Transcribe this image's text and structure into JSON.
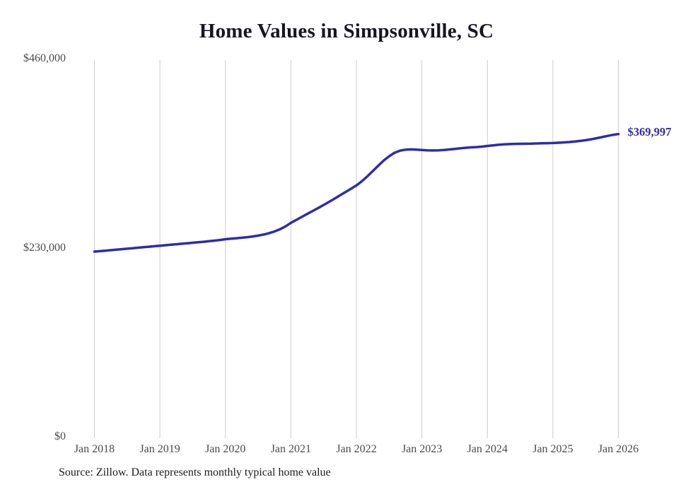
{
  "title": "Home Values in Simpsonville, SC",
  "source_note": "Source: Zillow. Data represents monthly typical home value",
  "chart_data": {
    "type": "line",
    "title": "Home Values in Simpsonville, SC",
    "series_name": "Monthly typical home value",
    "frequency": "monthly",
    "x_start": "Jan 2018",
    "x_end": "Jan 2026",
    "x_tick_labels": [
      "Jan 2018",
      "Jan 2019",
      "Jan 2020",
      "Jan 2021",
      "Jan 2022",
      "Jan 2023",
      "Jan 2024",
      "Jan 2025",
      "Jan 2026"
    ],
    "x_tick_interval_months": 12,
    "values": [
      227000,
      227500,
      228100,
      228700,
      229300,
      229900,
      230500,
      231100,
      231700,
      232300,
      232900,
      233500,
      234100,
      234700,
      235300,
      235900,
      236500,
      237100,
      237700,
      238300,
      238900,
      239600,
      240300,
      241100,
      242000,
      242600,
      243200,
      243800,
      244500,
      245400,
      246400,
      247700,
      249400,
      251500,
      254200,
      257700,
      262000,
      265600,
      269200,
      272800,
      276400,
      280000,
      283700,
      287500,
      291400,
      295400,
      299400,
      303400,
      307500,
      312500,
      318500,
      325000,
      331500,
      337800,
      343000,
      347300,
      349900,
      351000,
      351300,
      351100,
      350600,
      350200,
      350000,
      350200,
      350600,
      351200,
      351900,
      352600,
      353300,
      353800,
      354200,
      354700,
      355500,
      356200,
      356900,
      357400,
      357800,
      358000,
      358100,
      358200,
      358300,
      358500,
      358700,
      358900,
      359100,
      359400,
      359800,
      360300,
      360900,
      361600,
      362500,
      363600,
      364900,
      366300,
      367700,
      369000,
      369997
    ],
    "ylim": [
      0,
      460000
    ],
    "y_ticks": [
      {
        "value": 0,
        "label": "$0"
      },
      {
        "value": 230000,
        "label": "$230,000"
      },
      {
        "value": 460000,
        "label": "$460,000"
      }
    ],
    "grid": "vertical-only",
    "legend": "none",
    "line_color": "#2f2caa",
    "end_label": "$369,997",
    "end_value": 369997
  }
}
